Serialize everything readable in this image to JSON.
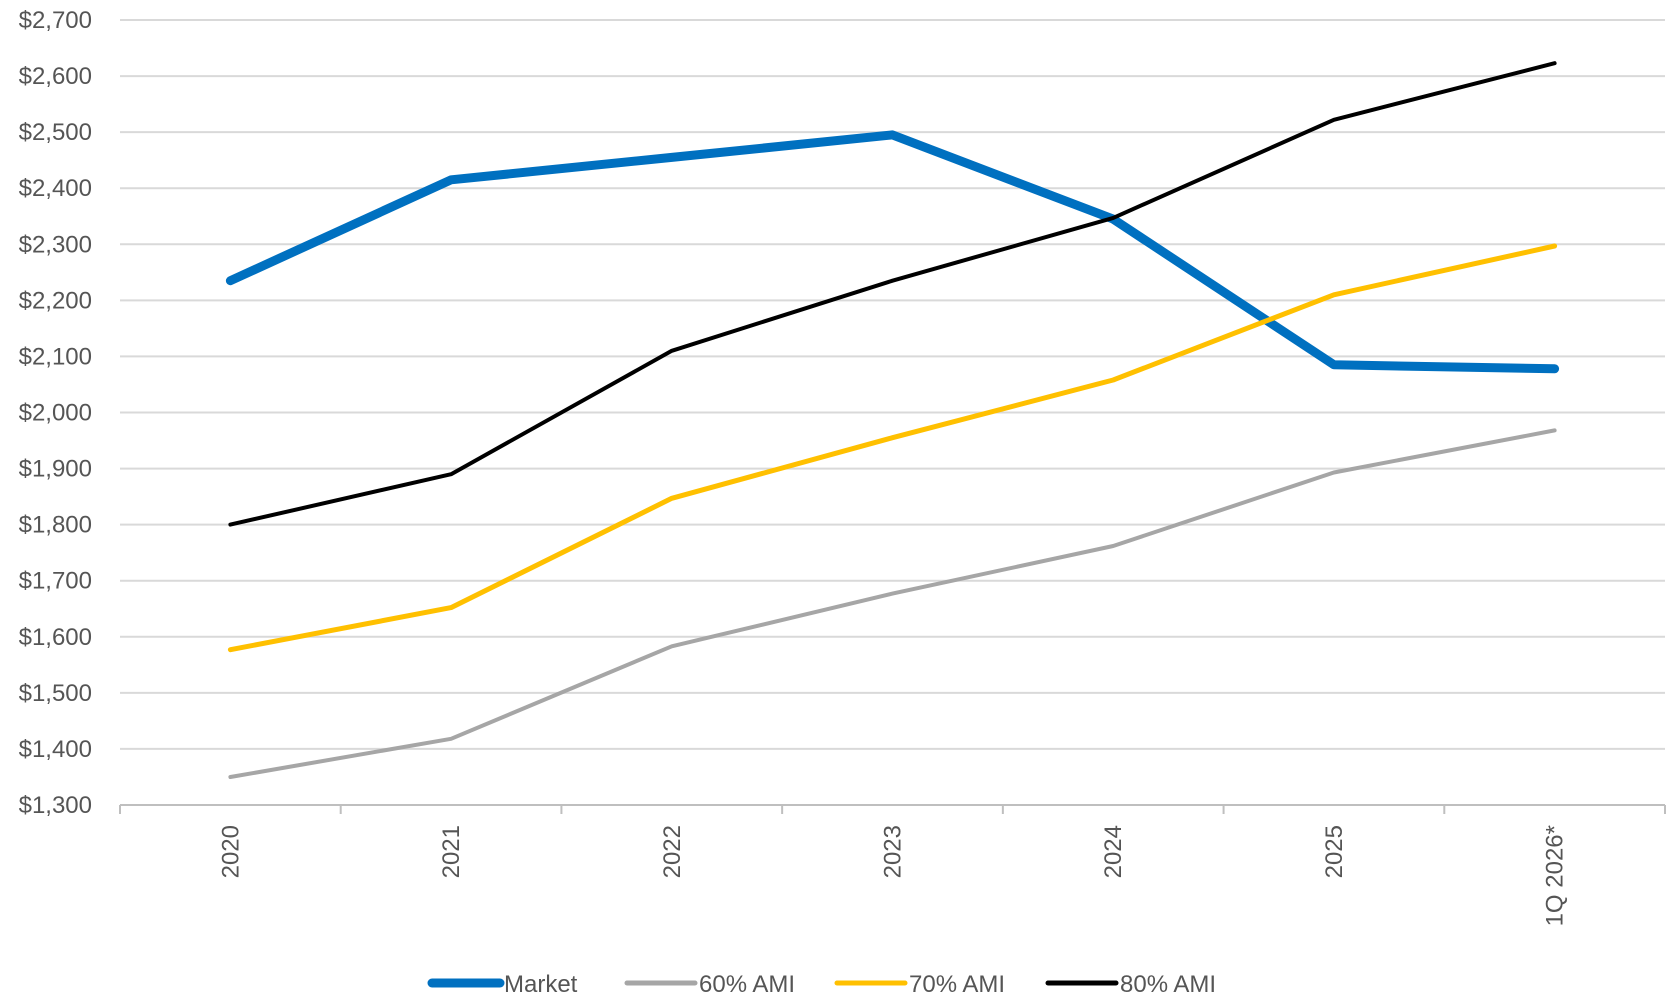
{
  "chart_data": {
    "type": "line",
    "categories": [
      "2020",
      "2021",
      "2022",
      "2023",
      "2024",
      "2025",
      "1Q 2026*"
    ],
    "ylim": [
      1300,
      2700
    ],
    "ytick_step": 100,
    "ytick_format": "$#,###",
    "grid": true,
    "legend_position": "bottom-center",
    "series": [
      {
        "name": "Market",
        "color": "#0070C0",
        "values": [
          2235,
          2415,
          2455,
          2495,
          2345,
          2085,
          2078
        ]
      },
      {
        "name": "60% AMI",
        "color": "#A6A6A6",
        "values": [
          1350,
          1418,
          1583,
          1677,
          1762,
          1893,
          1968
        ]
      },
      {
        "name": "70% AMI",
        "color": "#FFC000",
        "values": [
          1577,
          1652,
          1847,
          1955,
          2058,
          2210,
          2297
        ]
      },
      {
        "name": "80% AMI",
        "color": "#000000",
        "values": [
          1800,
          1890,
          2110,
          2235,
          2347,
          2522,
          2623
        ]
      }
    ]
  }
}
